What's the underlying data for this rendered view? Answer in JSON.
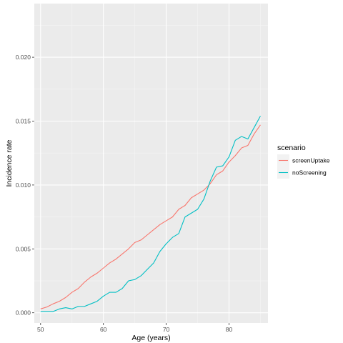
{
  "chart_data": {
    "type": "line",
    "xlabel": "Age (years)",
    "ylabel": "Incidence rate",
    "xlim": [
      49,
      86.2
    ],
    "ylim": [
      -0.0008,
      0.0242
    ],
    "x_ticks": [
      50,
      60,
      70,
      80
    ],
    "x_tick_labels": [
      "50",
      "60",
      "70",
      "80"
    ],
    "y_ticks": [
      0.0,
      0.005,
      0.01,
      0.015,
      0.02
    ],
    "y_tick_labels": [
      "0.000",
      "0.005",
      "0.010",
      "0.015",
      "0.020"
    ],
    "grid": true,
    "legend": {
      "title": "scenario",
      "placement": "right"
    },
    "x": [
      50,
      51,
      52,
      53,
      54,
      55,
      56,
      57,
      58,
      59,
      60,
      61,
      62,
      63,
      64,
      65,
      66,
      67,
      68,
      69,
      70,
      71,
      72,
      73,
      74,
      75,
      76,
      77,
      78,
      79,
      80,
      81,
      82,
      83,
      84,
      85
    ],
    "series": [
      {
        "name": "screenUptake",
        "color": "#F8766D",
        "values": [
          0.0003,
          0.00045,
          0.0007,
          0.0009,
          0.0012,
          0.0016,
          0.0019,
          0.0024,
          0.0028,
          0.0031,
          0.0035,
          0.0039,
          0.0042,
          0.0046,
          0.005,
          0.0055,
          0.0057,
          0.0061,
          0.0065,
          0.0069,
          0.0072,
          0.0075,
          0.0081,
          0.0084,
          0.009,
          0.0093,
          0.0096,
          0.0101,
          0.0108,
          0.0111,
          0.0118,
          0.0123,
          0.0129,
          0.0131,
          0.014,
          0.0147
        ]
      },
      {
        "name": "noScreening",
        "color": "#00BFC4",
        "values": [
          0.0001,
          0.0001,
          0.0001,
          0.0003,
          0.0004,
          0.0003,
          0.0005,
          0.0005,
          0.0007,
          0.0009,
          0.0013,
          0.0016,
          0.0016,
          0.0019,
          0.0025,
          0.0026,
          0.0029,
          0.0034,
          0.0039,
          0.0048,
          0.0054,
          0.0059,
          0.0062,
          0.0075,
          0.0078,
          0.0081,
          0.0089,
          0.0103,
          0.0114,
          0.0115,
          0.0122,
          0.0135,
          0.0138,
          0.0136,
          0.0145,
          0.0154
        ]
      }
    ]
  }
}
